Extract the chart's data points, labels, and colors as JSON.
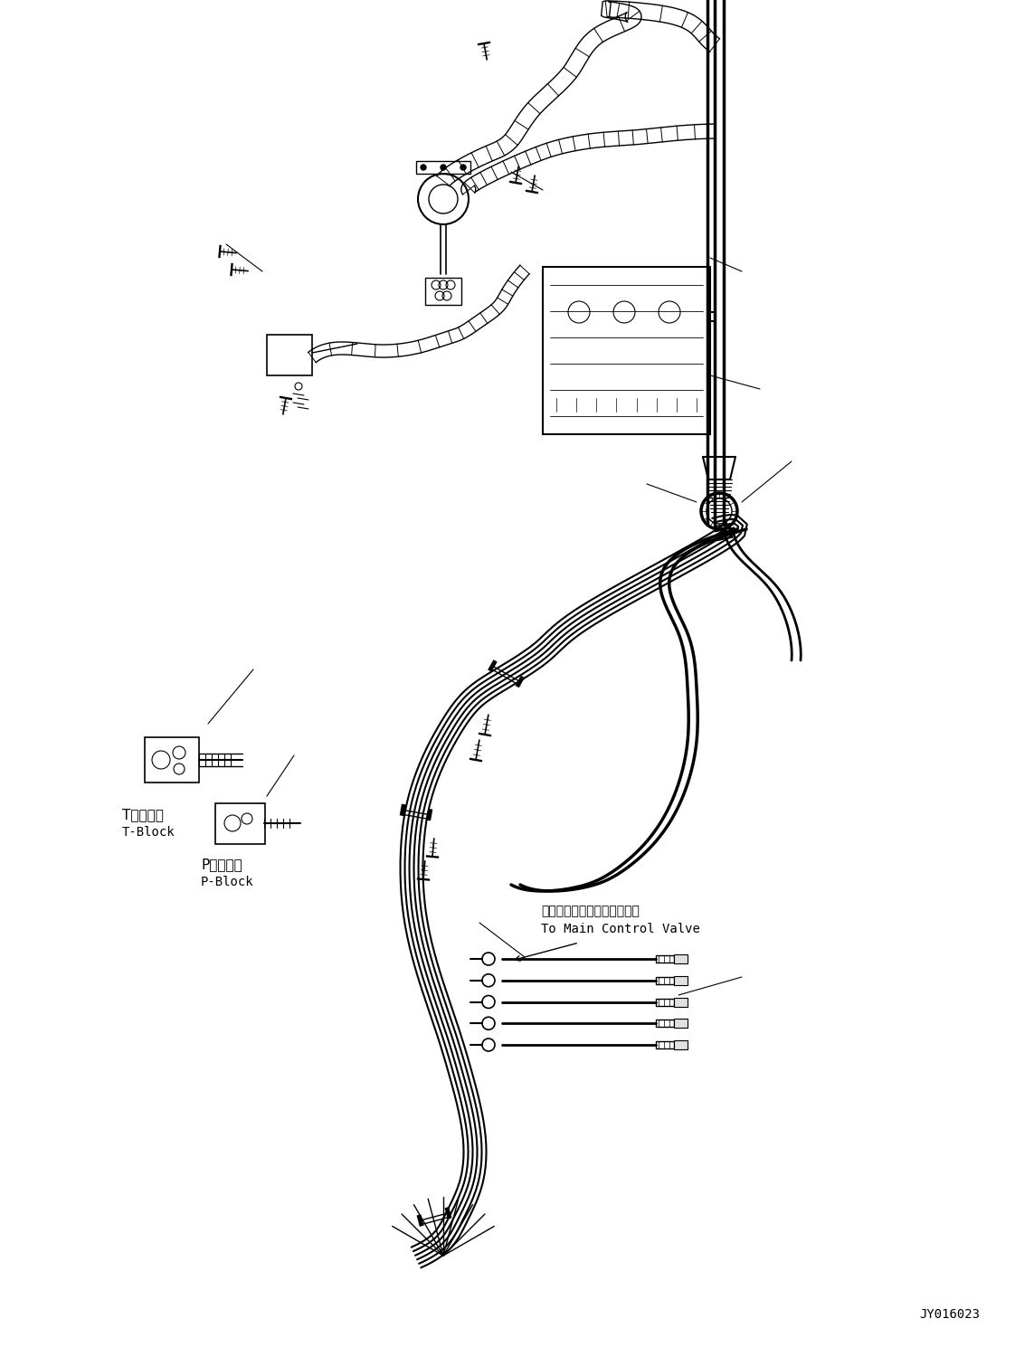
{
  "bg_color": "#ffffff",
  "line_color": "#000000",
  "fig_width": 11.43,
  "fig_height": 14.89,
  "dpi": 100,
  "watermark": "JY016023",
  "label_t_jp": "Tブロック",
  "label_t_en": "T-Block",
  "label_p_jp": "Pブロック",
  "label_p_en": "P-Block",
  "label_valve_jp": "メインコントロールバルブへ",
  "label_valve_en": "To Main Control Valve"
}
